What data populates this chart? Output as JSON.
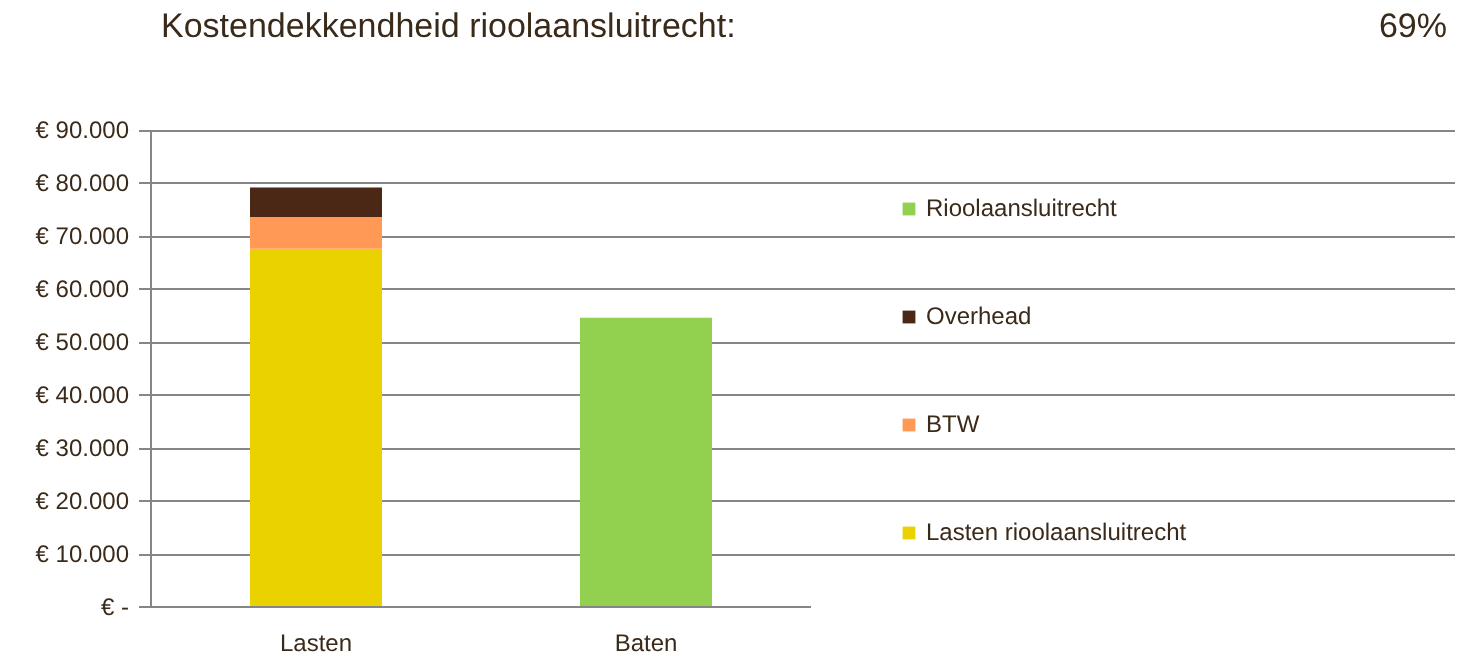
{
  "chart_data": {
    "type": "bar",
    "title": "Kostendekkendheid rioolaansluitrecht:",
    "annotations": [
      "69%"
    ],
    "categories": [
      "Lasten",
      "Baten"
    ],
    "stacked": true,
    "series": [
      {
        "name": "Lasten rioolaansluitrecht",
        "color": "#e9d200",
        "values": [
          67600,
          null
        ]
      },
      {
        "name": "BTW",
        "color": "#ff9955",
        "values": [
          6000,
          null
        ]
      },
      {
        "name": "Overhead",
        "color": "#4a2815",
        "values": [
          5600,
          null
        ]
      },
      {
        "name": "Rioolaansluitrecht",
        "color": "#92d050",
        "values": [
          null,
          54600
        ]
      }
    ],
    "ylim": [
      0,
      90000
    ],
    "yticks": [
      {
        "value": 0,
        "label": "€ -"
      },
      {
        "value": 10000,
        "label": "€ 10.000"
      },
      {
        "value": 20000,
        "label": "€ 20.000"
      },
      {
        "value": 30000,
        "label": "€ 30.000"
      },
      {
        "value": 40000,
        "label": "€ 40.000"
      },
      {
        "value": 50000,
        "label": "€ 50.000"
      },
      {
        "value": 60000,
        "label": "€ 60.000"
      },
      {
        "value": 70000,
        "label": "€ 70.000"
      },
      {
        "value": 80000,
        "label": "€ 80.000"
      },
      {
        "value": 90000,
        "label": "€ 90.000"
      }
    ],
    "grid": "y",
    "legend": "right"
  }
}
